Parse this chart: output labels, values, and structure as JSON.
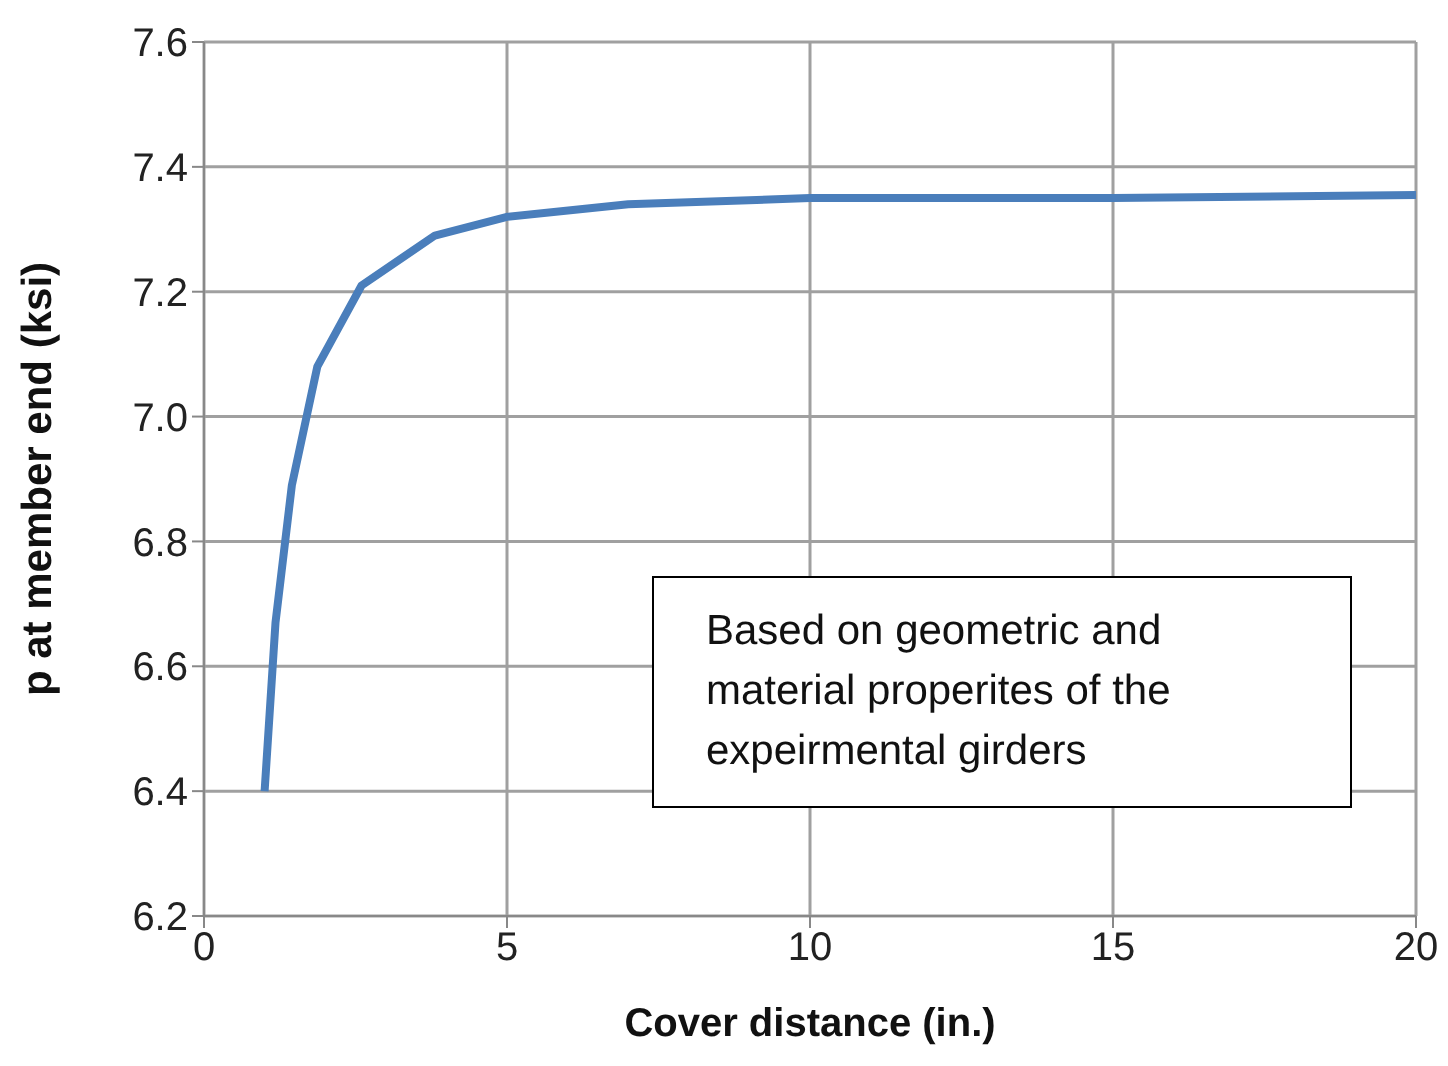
{
  "chart_data": {
    "type": "line",
    "xlabel": "Cover distance (in.)",
    "ylabel": "p at member end (ksi)",
    "x": [
      1,
      1.18,
      1.45,
      1.87,
      2.6,
      3.81,
      5,
      7,
      10,
      15,
      20
    ],
    "series": [
      {
        "color": "#4a7ebb",
        "values": [
          6.4,
          6.67,
          6.89,
          7.08,
          7.21,
          7.29,
          7.32,
          7.34,
          7.35,
          7.35,
          7.355
        ]
      }
    ],
    "xlim": [
      0,
      20
    ],
    "xticks": [
      0,
      5,
      10,
      15,
      20
    ],
    "ylim": [
      6.2,
      7.6
    ],
    "yticks": [
      6.2,
      6.4,
      6.6,
      6.8,
      {
        "value": 7,
        "label": "7.0"
      },
      7.2,
      7.4,
      7.6
    ],
    "grid": true,
    "marker": "none",
    "line_style": "solid",
    "annotations": [
      "Based on geometric and material properites of the expeirmental girders"
    ]
  }
}
